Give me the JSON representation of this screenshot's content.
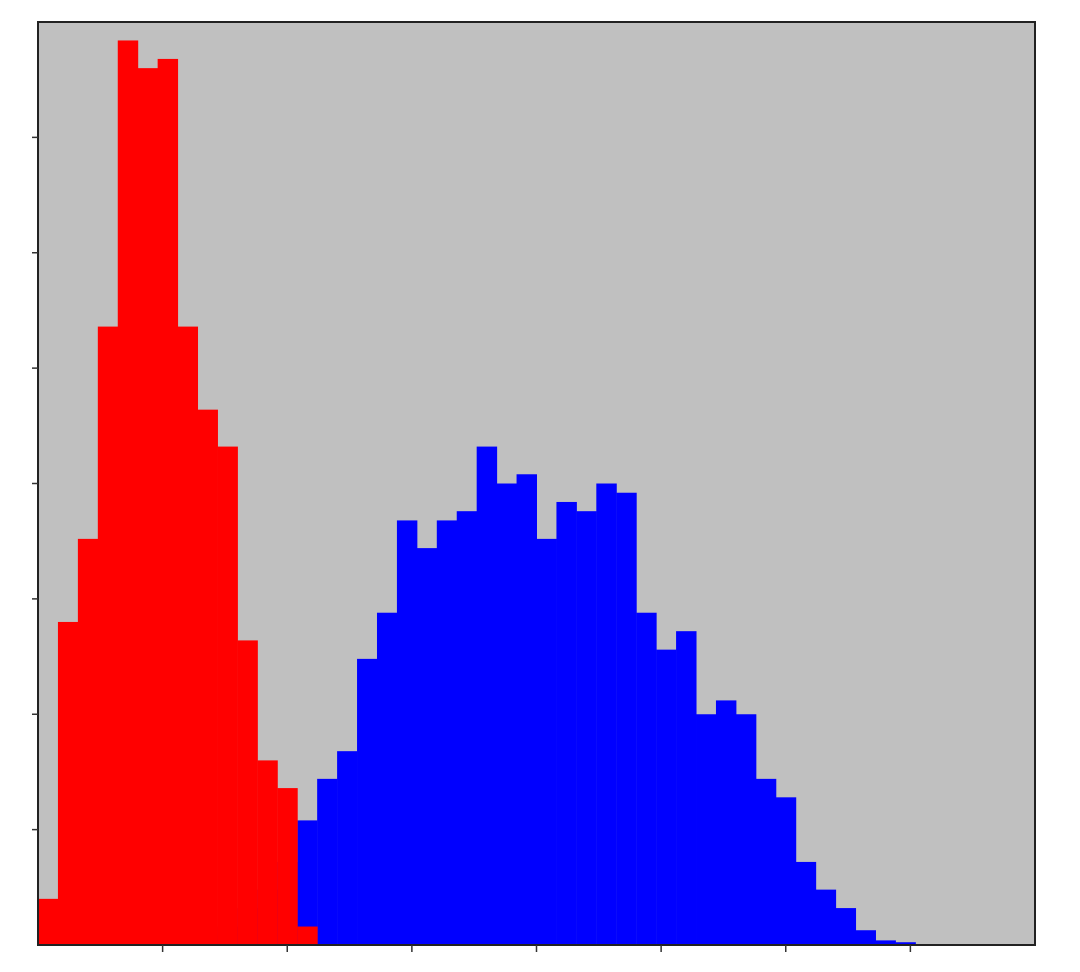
{
  "chart_data": {
    "type": "histogram",
    "bins": [
      0,
      20,
      40,
      60,
      80,
      100,
      120,
      140,
      160,
      180,
      200,
      220,
      240,
      260,
      280,
      300,
      320,
      340,
      360,
      380,
      400,
      420,
      440,
      460,
      480,
      500,
      520,
      540,
      560,
      580,
      600,
      620,
      640,
      660,
      680,
      700,
      720,
      740,
      760,
      780,
      800,
      820,
      840,
      860,
      880,
      900,
      920,
      940,
      960,
      980,
      1000
    ],
    "series": [
      {
        "color": "#0000ff",
        "values": [
          0,
          0,
          0,
          0,
          0,
          0,
          0,
          0.5,
          1,
          2,
          4,
          6,
          9,
          13.5,
          18,
          21,
          31,
          36,
          46,
          43,
          46,
          47,
          54,
          50,
          51,
          44,
          48,
          47,
          50,
          49,
          36,
          32,
          34,
          25,
          26.5,
          25,
          18,
          16,
          9,
          6,
          4,
          1.6,
          0.5,
          0.3,
          0,
          0,
          0,
          0,
          0,
          0
        ]
      },
      {
        "color": "#ff0000",
        "values": [
          5,
          35,
          44,
          67,
          98,
          95,
          96,
          67,
          58,
          54,
          33,
          20,
          17,
          2,
          0,
          0,
          0,
          0,
          0,
          0,
          0,
          0,
          0,
          0,
          0,
          0,
          0,
          0,
          0,
          0,
          0,
          0,
          0,
          0,
          0,
          0,
          0,
          0,
          0,
          0,
          0,
          0,
          0,
          0,
          0,
          0,
          0,
          0,
          0,
          0
        ]
      }
    ],
    "xlim": [
      0,
      1000
    ],
    "ylim": [
      0,
      100
    ],
    "xticks": [
      125,
      250,
      375,
      500,
      625,
      750,
      875
    ],
    "yticks": [
      12.5,
      25,
      37.5,
      50,
      62.5,
      75,
      87.5
    ],
    "tick_labels": false,
    "grid": false
  }
}
